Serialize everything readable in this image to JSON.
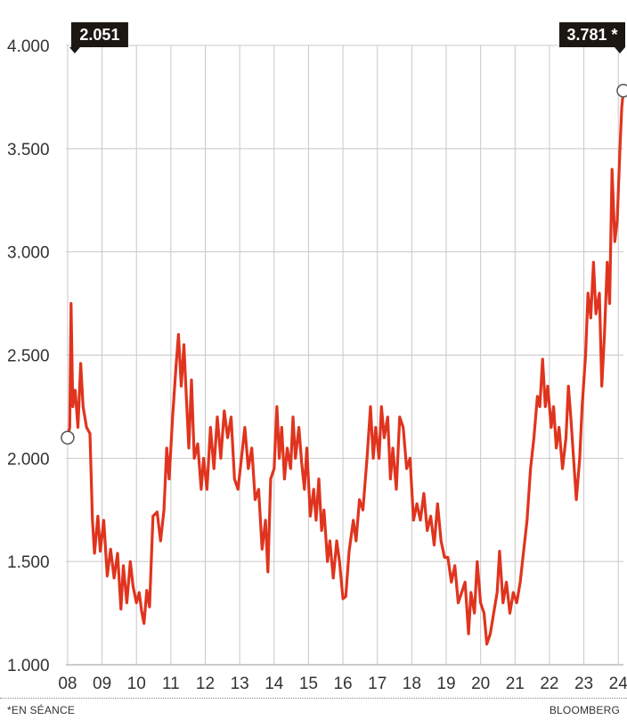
{
  "chart_data": {
    "type": "line",
    "y_ticks": [
      "4.000",
      "3.500",
      "3.000",
      "2.500",
      "2.000",
      "1.500",
      "1.000"
    ],
    "y_tick_values": [
      4000,
      3500,
      3000,
      2500,
      2000,
      1500,
      1000
    ],
    "x_ticks": [
      "08",
      "09",
      "10",
      "11",
      "12",
      "13",
      "14",
      "15",
      "16",
      "17",
      "18",
      "19",
      "20",
      "21",
      "22",
      "23",
      "24"
    ],
    "x_tick_values": [
      2008,
      2009,
      2010,
      2011,
      2012,
      2013,
      2014,
      2015,
      2016,
      2017,
      2018,
      2019,
      2020,
      2021,
      2022,
      2023,
      2024
    ],
    "ylim": [
      1000,
      4000
    ],
    "xlim": [
      2007.95,
      2024.15
    ],
    "grid": true,
    "start_label": "2.051",
    "end_label": "3.781 *",
    "series": [
      {
        "color": "#e0341e",
        "points": [
          [
            2008.0,
            2100
          ],
          [
            2008.06,
            2150
          ],
          [
            2008.1,
            2750
          ],
          [
            2008.15,
            2250
          ],
          [
            2008.22,
            2330
          ],
          [
            2008.3,
            2150
          ],
          [
            2008.38,
            2460
          ],
          [
            2008.45,
            2250
          ],
          [
            2008.55,
            2150
          ],
          [
            2008.65,
            2120
          ],
          [
            2008.72,
            1700
          ],
          [
            2008.78,
            1540
          ],
          [
            2008.88,
            1720
          ],
          [
            2008.95,
            1550
          ],
          [
            2009.05,
            1700
          ],
          [
            2009.15,
            1430
          ],
          [
            2009.25,
            1560
          ],
          [
            2009.35,
            1420
          ],
          [
            2009.45,
            1540
          ],
          [
            2009.55,
            1270
          ],
          [
            2009.62,
            1480
          ],
          [
            2009.72,
            1300
          ],
          [
            2009.82,
            1500
          ],
          [
            2009.9,
            1380
          ],
          [
            2010.0,
            1300
          ],
          [
            2010.08,
            1350
          ],
          [
            2010.15,
            1260
          ],
          [
            2010.22,
            1200
          ],
          [
            2010.3,
            1360
          ],
          [
            2010.38,
            1280
          ],
          [
            2010.48,
            1720
          ],
          [
            2010.6,
            1740
          ],
          [
            2010.7,
            1600
          ],
          [
            2010.8,
            1750
          ],
          [
            2010.88,
            2050
          ],
          [
            2010.95,
            1900
          ],
          [
            2011.05,
            2200
          ],
          [
            2011.15,
            2450
          ],
          [
            2011.22,
            2600
          ],
          [
            2011.3,
            2350
          ],
          [
            2011.38,
            2550
          ],
          [
            2011.45,
            2300
          ],
          [
            2011.52,
            2050
          ],
          [
            2011.6,
            2380
          ],
          [
            2011.68,
            2000
          ],
          [
            2011.78,
            2070
          ],
          [
            2011.88,
            1850
          ],
          [
            2011.95,
            2000
          ],
          [
            2012.05,
            1850
          ],
          [
            2012.15,
            2150
          ],
          [
            2012.25,
            1950
          ],
          [
            2012.35,
            2200
          ],
          [
            2012.45,
            2000
          ],
          [
            2012.55,
            2230
          ],
          [
            2012.65,
            2100
          ],
          [
            2012.75,
            2200
          ],
          [
            2012.85,
            1900
          ],
          [
            2012.95,
            1850
          ],
          [
            2013.05,
            2000
          ],
          [
            2013.15,
            2150
          ],
          [
            2013.25,
            1950
          ],
          [
            2013.35,
            2050
          ],
          [
            2013.45,
            1800
          ],
          [
            2013.55,
            1850
          ],
          [
            2013.65,
            1560
          ],
          [
            2013.75,
            1700
          ],
          [
            2013.82,
            1450
          ],
          [
            2013.9,
            1900
          ],
          [
            2014.0,
            1950
          ],
          [
            2014.08,
            2250
          ],
          [
            2014.15,
            2000
          ],
          [
            2014.22,
            2150
          ],
          [
            2014.3,
            1900
          ],
          [
            2014.38,
            2050
          ],
          [
            2014.48,
            1950
          ],
          [
            2014.55,
            2200
          ],
          [
            2014.62,
            2000
          ],
          [
            2014.72,
            2150
          ],
          [
            2014.8,
            1980
          ],
          [
            2014.88,
            1850
          ],
          [
            2014.95,
            2050
          ],
          [
            2015.05,
            1720
          ],
          [
            2015.15,
            1850
          ],
          [
            2015.22,
            1700
          ],
          [
            2015.3,
            1900
          ],
          [
            2015.38,
            1650
          ],
          [
            2015.45,
            1750
          ],
          [
            2015.55,
            1500
          ],
          [
            2015.62,
            1600
          ],
          [
            2015.72,
            1420
          ],
          [
            2015.82,
            1600
          ],
          [
            2015.9,
            1500
          ],
          [
            2016.0,
            1320
          ],
          [
            2016.08,
            1330
          ],
          [
            2016.18,
            1550
          ],
          [
            2016.3,
            1700
          ],
          [
            2016.38,
            1600
          ],
          [
            2016.48,
            1800
          ],
          [
            2016.58,
            1750
          ],
          [
            2016.7,
            2000
          ],
          [
            2016.8,
            2250
          ],
          [
            2016.88,
            2000
          ],
          [
            2016.95,
            2150
          ],
          [
            2017.05,
            2000
          ],
          [
            2017.12,
            2250
          ],
          [
            2017.2,
            2100
          ],
          [
            2017.3,
            2200
          ],
          [
            2017.38,
            1900
          ],
          [
            2017.45,
            2050
          ],
          [
            2017.55,
            1850
          ],
          [
            2017.65,
            2200
          ],
          [
            2017.75,
            2150
          ],
          [
            2017.85,
            1950
          ],
          [
            2017.95,
            2000
          ],
          [
            2018.05,
            1700
          ],
          [
            2018.15,
            1780
          ],
          [
            2018.25,
            1700
          ],
          [
            2018.35,
            1830
          ],
          [
            2018.45,
            1650
          ],
          [
            2018.55,
            1720
          ],
          [
            2018.65,
            1580
          ],
          [
            2018.75,
            1780
          ],
          [
            2018.85,
            1600
          ],
          [
            2018.95,
            1520
          ],
          [
            2019.05,
            1520
          ],
          [
            2019.15,
            1400
          ],
          [
            2019.25,
            1480
          ],
          [
            2019.35,
            1300
          ],
          [
            2019.45,
            1350
          ],
          [
            2019.55,
            1400
          ],
          [
            2019.65,
            1150
          ],
          [
            2019.72,
            1350
          ],
          [
            2019.82,
            1250
          ],
          [
            2019.9,
            1500
          ],
          [
            2020.0,
            1300
          ],
          [
            2020.1,
            1250
          ],
          [
            2020.18,
            1100
          ],
          [
            2020.28,
            1150
          ],
          [
            2020.38,
            1250
          ],
          [
            2020.48,
            1350
          ],
          [
            2020.55,
            1550
          ],
          [
            2020.65,
            1300
          ],
          [
            2020.75,
            1400
          ],
          [
            2020.85,
            1250
          ],
          [
            2020.95,
            1350
          ],
          [
            2021.05,
            1300
          ],
          [
            2021.15,
            1400
          ],
          [
            2021.25,
            1550
          ],
          [
            2021.35,
            1700
          ],
          [
            2021.45,
            1950
          ],
          [
            2021.55,
            2100
          ],
          [
            2021.65,
            2300
          ],
          [
            2021.72,
            2250
          ],
          [
            2021.8,
            2480
          ],
          [
            2021.88,
            2250
          ],
          [
            2021.95,
            2350
          ],
          [
            2022.05,
            2150
          ],
          [
            2022.12,
            2250
          ],
          [
            2022.2,
            2050
          ],
          [
            2022.28,
            2150
          ],
          [
            2022.38,
            1950
          ],
          [
            2022.48,
            2100
          ],
          [
            2022.55,
            2350
          ],
          [
            2022.62,
            2200
          ],
          [
            2022.7,
            2000
          ],
          [
            2022.78,
            1800
          ],
          [
            2022.88,
            2000
          ],
          [
            2022.95,
            2250
          ],
          [
            2023.05,
            2500
          ],
          [
            2023.12,
            2800
          ],
          [
            2023.2,
            2680
          ],
          [
            2023.28,
            2950
          ],
          [
            2023.35,
            2700
          ],
          [
            2023.45,
            2800
          ],
          [
            2023.52,
            2350
          ],
          [
            2023.6,
            2600
          ],
          [
            2023.68,
            2950
          ],
          [
            2023.75,
            2750
          ],
          [
            2023.82,
            3400
          ],
          [
            2023.9,
            3050
          ],
          [
            2023.97,
            3150
          ],
          [
            2024.05,
            3500
          ],
          [
            2024.1,
            3700
          ],
          [
            2024.15,
            3781
          ]
        ]
      }
    ]
  },
  "footer": {
    "note": "*EN SÉANCE",
    "source": "BLOOMBERG"
  }
}
